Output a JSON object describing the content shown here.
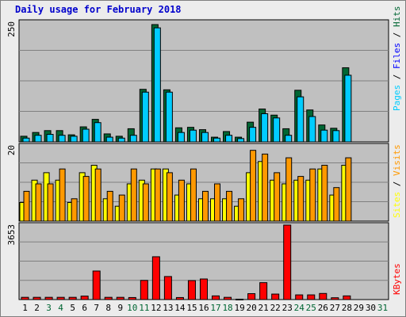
{
  "title": "Daily usage for February 2018",
  "colors": {
    "hits": "#006633",
    "files": "#00ccff",
    "pages": "#00ccff",
    "sites": "#ffff00",
    "visits": "#ff9900",
    "kbytes": "#ff0000",
    "weekday_label": "#000000",
    "weekend_label": "#006633",
    "title": "#0000cc"
  },
  "chart_data": [
    {
      "type": "bar",
      "name": "hits-files-pages",
      "categories": [
        "1",
        "2",
        "3",
        "4",
        "5",
        "6",
        "7",
        "8",
        "9",
        "10",
        "11",
        "12",
        "13",
        "14",
        "15",
        "16",
        "17",
        "18",
        "19",
        "20",
        "21",
        "22",
        "23",
        "24",
        "25",
        "26",
        "27",
        "28",
        "29",
        "30",
        "31"
      ],
      "ymax_label": "250",
      "ymax": 250,
      "legend": [
        "Pages",
        "Files",
        "Hits"
      ],
      "series": [
        {
          "name": "Hits",
          "values": [
            12,
            20,
            24,
            24,
            15,
            32,
            48,
            17,
            12,
            28,
            112,
            250,
            111,
            30,
            31,
            26,
            10,
            22,
            10,
            42,
            70,
            57,
            28,
            110,
            68,
            36,
            29,
            158,
            0,
            0,
            0
          ]
        },
        {
          "name": "Files",
          "values": [
            8,
            14,
            16,
            14,
            12,
            27,
            41,
            10,
            8,
            14,
            106,
            243,
            106,
            20,
            25,
            20,
            8,
            14,
            7,
            31,
            60,
            51,
            14,
            96,
            54,
            25,
            24,
            142,
            0,
            0,
            0
          ]
        },
        {
          "name": "Pages",
          "values": [
            0,
            0,
            0,
            0,
            0,
            0,
            0,
            0,
            0,
            0,
            0,
            0,
            0,
            0,
            0,
            0,
            0,
            0,
            0,
            0,
            0,
            0,
            0,
            0,
            0,
            0,
            0,
            0,
            0,
            0,
            0
          ]
        }
      ]
    },
    {
      "type": "bar",
      "name": "sites-visits",
      "categories": [
        "1",
        "2",
        "3",
        "4",
        "5",
        "6",
        "7",
        "8",
        "9",
        "10",
        "11",
        "12",
        "13",
        "14",
        "15",
        "16",
        "17",
        "18",
        "19",
        "20",
        "21",
        "22",
        "23",
        "24",
        "25",
        "26",
        "27",
        "28",
        "29",
        "30",
        "31"
      ],
      "ymax_label": "20",
      "ymax": 20,
      "legend": [
        "Sites",
        "Visits"
      ],
      "series": [
        {
          "name": "Sites",
          "values": [
            5,
            11,
            13,
            11,
            5,
            13,
            15,
            6,
            4,
            10,
            11,
            14,
            14,
            7,
            10,
            6,
            6,
            6,
            4,
            13,
            16,
            11,
            10,
            11,
            11,
            14,
            7,
            15,
            0,
            0,
            0
          ]
        },
        {
          "name": "Visits",
          "values": [
            8,
            10,
            10,
            14,
            6,
            12,
            14,
            8,
            7,
            14,
            10,
            14,
            13,
            11,
            14,
            8,
            10,
            8,
            6,
            19,
            18,
            13,
            17,
            12,
            14,
            15,
            9,
            17,
            0,
            0,
            0
          ]
        }
      ]
    },
    {
      "type": "bar",
      "name": "kbytes",
      "categories": [
        "1",
        "2",
        "3",
        "4",
        "5",
        "6",
        "7",
        "8",
        "9",
        "10",
        "11",
        "12",
        "13",
        "14",
        "15",
        "16",
        "17",
        "18",
        "19",
        "20",
        "21",
        "22",
        "23",
        "24",
        "25",
        "26",
        "27",
        "28",
        "29",
        "30",
        "31"
      ],
      "ymax_label": "3653",
      "ymax": 3653,
      "legend": [
        "KBytes"
      ],
      "series": [
        {
          "name": "KBytes",
          "values": [
            110,
            110,
            110,
            110,
            110,
            170,
            1400,
            110,
            110,
            100,
            940,
            2100,
            1130,
            100,
            930,
            1010,
            180,
            110,
            20,
            290,
            830,
            270,
            3653,
            230,
            230,
            300,
            90,
            180,
            0,
            0,
            0
          ]
        }
      ]
    }
  ],
  "weekend_days": [
    "3",
    "4",
    "10",
    "11",
    "17",
    "18",
    "24",
    "25",
    "31"
  ]
}
